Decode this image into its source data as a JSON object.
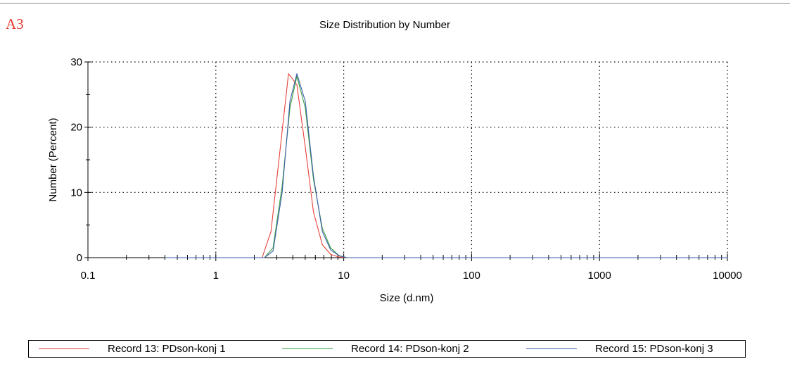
{
  "panel_label": "A3",
  "chart_data": {
    "type": "line",
    "title": "Size Distribution by Number",
    "xlabel": "Size (d.nm)",
    "ylabel": "Number (Percent)",
    "xscale": "log",
    "xlim": [
      0.1,
      10000
    ],
    "ylim": [
      0,
      30
    ],
    "xticks": [
      0.1,
      1,
      10,
      100,
      1000,
      10000
    ],
    "xtick_labels": [
      "0.1",
      "1",
      "10",
      "100",
      "1000",
      "10000"
    ],
    "yticks": [
      0,
      10,
      20,
      30
    ],
    "ytick_labels": [
      "0",
      "10",
      "20",
      "30"
    ],
    "grid": "dotted",
    "legend_position": "bottom",
    "series": [
      {
        "name": "Record 13: PDson-konj 1",
        "color": "#e8403a",
        "x": [
          0.4,
          2.3,
          2.7,
          3.2,
          3.7,
          4.3,
          5.0,
          5.8,
          6.8,
          7.9,
          9.2,
          10.6,
          10000
        ],
        "y": [
          0,
          0,
          4,
          17,
          28.2,
          26.5,
          17,
          7,
          2,
          0.5,
          0.1,
          0,
          0
        ]
      },
      {
        "name": "Record 14: PDson-konj 2",
        "color": "#3da042",
        "x": [
          0.4,
          2.4,
          2.8,
          3.3,
          3.8,
          4.3,
          5.0,
          5.8,
          6.8,
          7.9,
          9.2,
          10.6,
          10000
        ],
        "y": [
          0,
          0,
          1.5,
          11,
          23,
          27.8,
          23,
          12,
          4.5,
          1.5,
          0.3,
          0,
          0
        ]
      },
      {
        "name": "Record 15: PDson-konj 3",
        "color": "#3b5ea8",
        "x": [
          0.4,
          2.4,
          2.8,
          3.3,
          3.8,
          4.3,
          5.0,
          5.8,
          6.8,
          7.9,
          9.2,
          10.6,
          10000
        ],
        "y": [
          0,
          0,
          1,
          10,
          24,
          28.2,
          24,
          12.5,
          4,
          1.2,
          0.3,
          0,
          0
        ]
      }
    ]
  }
}
